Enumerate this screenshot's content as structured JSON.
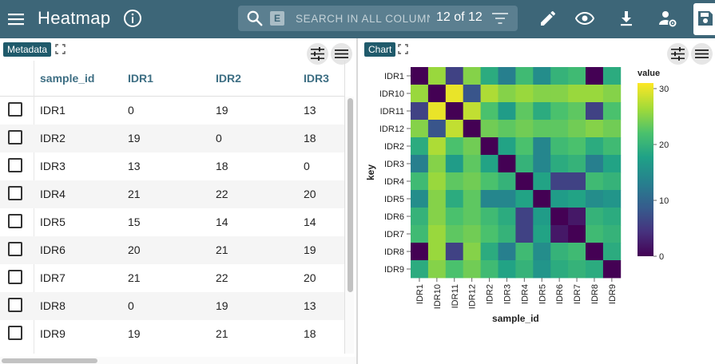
{
  "header": {
    "title": "Heatmap",
    "search": {
      "badge": "E",
      "placeholder": "SEARCH IN ALL COLUMNS",
      "value": ""
    },
    "match_count": "12 of 12",
    "icons": [
      "menu-icon",
      "info-icon",
      "search-icon",
      "filter-icon",
      "pencil-icon",
      "eye-icon",
      "download-icon",
      "user-settings-icon",
      "save-icon"
    ]
  },
  "metadata_panel": {
    "label": "Metadata",
    "columns": [
      "sample_id",
      "IDR1",
      "IDR2",
      "IDR3"
    ],
    "rows": [
      [
        "IDR1",
        "0",
        "19",
        "13"
      ],
      [
        "IDR2",
        "19",
        "0",
        "18"
      ],
      [
        "IDR3",
        "13",
        "18",
        "0"
      ],
      [
        "IDR4",
        "21",
        "22",
        "20"
      ],
      [
        "IDR5",
        "15",
        "14",
        "14"
      ],
      [
        "IDR6",
        "20",
        "21",
        "19"
      ],
      [
        "IDR7",
        "21",
        "22",
        "20"
      ],
      [
        "IDR8",
        "0",
        "19",
        "13"
      ],
      [
        "IDR9",
        "19",
        "21",
        "18"
      ]
    ]
  },
  "chart_panel": {
    "label": "Chart"
  },
  "chart_data": {
    "type": "heatmap",
    "y_categories": [
      "IDR1",
      "IDR10",
      "IDR11",
      "IDR12",
      "IDR2",
      "IDR3",
      "IDR4",
      "IDR5",
      "IDR6",
      "IDR7",
      "IDR8",
      "IDR9"
    ],
    "x_categories": [
      "IDR1",
      "IDR10",
      "IDR11",
      "IDR12",
      "IDR2",
      "IDR3",
      "IDR4",
      "IDR5",
      "IDR6",
      "IDR7",
      "IDR8",
      "IDR9"
    ],
    "values": [
      [
        0,
        26,
        6,
        25,
        19,
        13,
        21,
        15,
        20,
        21,
        0,
        19
      ],
      [
        26,
        0,
        30,
        8,
        27,
        25,
        26,
        25,
        25,
        26,
        26,
        25
      ],
      [
        6,
        30,
        0,
        28,
        22,
        17,
        23,
        19,
        22,
        23,
        6,
        22
      ],
      [
        25,
        8,
        28,
        0,
        24,
        23,
        24,
        23,
        23,
        24,
        25,
        24
      ],
      [
        19,
        27,
        22,
        24,
        0,
        18,
        22,
        14,
        21,
        22,
        19,
        21
      ],
      [
        13,
        25,
        17,
        23,
        18,
        0,
        20,
        14,
        19,
        20,
        13,
        18
      ],
      [
        21,
        26,
        23,
        24,
        22,
        20,
        0,
        18,
        6,
        6,
        21,
        20
      ],
      [
        15,
        25,
        19,
        23,
        14,
        14,
        18,
        0,
        17,
        18,
        15,
        16
      ],
      [
        20,
        25,
        22,
        23,
        21,
        19,
        6,
        17,
        0,
        2,
        20,
        19
      ],
      [
        21,
        26,
        23,
        24,
        22,
        20,
        6,
        18,
        2,
        0,
        21,
        20
      ],
      [
        0,
        26,
        6,
        25,
        19,
        13,
        21,
        15,
        20,
        21,
        0,
        19
      ],
      [
        19,
        25,
        22,
        24,
        21,
        18,
        20,
        16,
        19,
        20,
        19,
        0
      ]
    ],
    "xlabel": "sample_id",
    "ylabel": "key",
    "legend": {
      "title": "value",
      "ticks": [
        0,
        10,
        20,
        30
      ],
      "range": [
        0,
        31
      ],
      "placement": "right"
    },
    "colorscale": "viridis"
  }
}
